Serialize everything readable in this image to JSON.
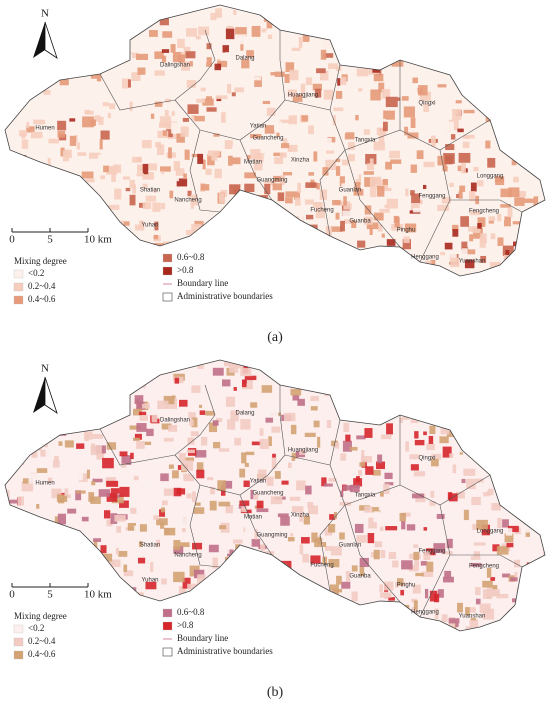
{
  "panels": [
    {
      "label": "(a)",
      "north": "N",
      "scale_bar": [
        "0",
        "5",
        "10 km"
      ],
      "legend": {
        "title": "Mixing degree",
        "classes": [
          {
            "label": "<0.2",
            "color": "#fdf1ec"
          },
          {
            "label": "0.2~0.4",
            "color": "#f6cdbd"
          },
          {
            "label": "0.4~0.6",
            "color": "#e69a7a"
          },
          {
            "label": "0.6~0.8",
            "color": "#c8654f"
          },
          {
            "label": ">0.8",
            "color": "#a8281d"
          }
        ],
        "boundary_line": "Boundary line",
        "admin_boundaries": "Administrative boundaries"
      },
      "place_names": [
        "Dalingshan",
        "Dalang",
        "Huangjiang",
        "Qingxi",
        "Humen",
        "Yatian",
        "Guancheng",
        "Matian",
        "Xinzha",
        "Shatian",
        "Nancheng",
        "Yuhan",
        "Guangming",
        "Tangxia",
        "Guanlan",
        "Fucheng",
        "Fenggang",
        "Longgang",
        "Guanba",
        "Pinghu",
        "Fengcheng",
        "Henggang",
        "Yuanshan"
      ]
    },
    {
      "label": "(b)",
      "north": "N",
      "scale_bar": [
        "0",
        "5",
        "10 km"
      ],
      "legend": {
        "title": "Mixing degree",
        "classes": [
          {
            "label": "<0.2",
            "color": "#fcefee"
          },
          {
            "label": "0.2~0.4",
            "color": "#f2cbc2"
          },
          {
            "label": "0.4~0.6",
            "color": "#d3a273"
          },
          {
            "label": "0.6~0.8",
            "color": "#c07088"
          },
          {
            "label": ">0.8",
            "color": "#d6262b"
          }
        ],
        "boundary_line": "Boundary line",
        "admin_boundaries": "Administrative boundaries"
      },
      "place_names": [
        "Dalingshan",
        "Dalang",
        "Huangjiang",
        "Qingxi",
        "Humen",
        "Yatian",
        "Guancheng",
        "Matian",
        "Xinzha",
        "Shatian",
        "Nancheng",
        "Yuhan",
        "Guangming",
        "Tangxia",
        "Guanlan",
        "Fucheng",
        "Fenggang",
        "Longgang",
        "Guanba",
        "Pinghu",
        "Fengcheng",
        "Henggang",
        "Yuanshan"
      ]
    }
  ]
}
